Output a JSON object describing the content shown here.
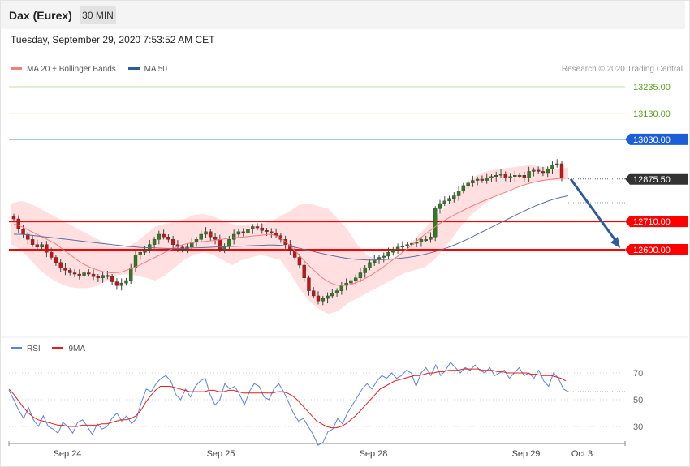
{
  "header": {
    "title": "Dax (Eurex)",
    "timeframe": "30 MIN",
    "timestamp": "Tuesday, September 29, 2020 7:53:52 AM CET"
  },
  "legend": {
    "ma20_label": "MA 20 + Bollinger Bands",
    "ma50_label": "MA 50",
    "credit": "Research © 2020 Trading Central",
    "rsi_label": "RSI",
    "ma9_label": "9MA"
  },
  "colors": {
    "candle_up": "#2e7d1e",
    "candle_down": "#cc1111",
    "bollinger_fill": "#ffd4d4",
    "ma20": "#f08080",
    "ma50": "#5a6fa0",
    "resistance_light": "#9ccc65",
    "resistance_blue": "#1a5ed8",
    "support_red": "#ff0000",
    "arrow": "#2e5aa0",
    "rsi": "#5b83d6",
    "rsi_ma": "#e02020"
  },
  "chart_data": [
    {
      "type": "candlestick",
      "title": "Dax (Eurex)",
      "ylim": [
        12300,
        13280
      ],
      "x_ticks": [
        "Sep 24",
        "Sep 25",
        "Sep 28",
        "Sep 29",
        "Oct 3"
      ],
      "levels": [
        {
          "value": 13235.0,
          "label": "13235.00",
          "style": "light-green"
        },
        {
          "value": 13130.0,
          "label": "13130.00",
          "style": "light-green"
        },
        {
          "value": 13030.0,
          "label": "13030.00",
          "style": "blue"
        },
        {
          "value": 12710.0,
          "label": "12710.00",
          "style": "red"
        },
        {
          "value": 12600.0,
          "label": "12600.00",
          "style": "red"
        }
      ],
      "last_price": {
        "value": 12875.5,
        "label": "12875.50"
      },
      "forecast_arrow": {
        "from": 12875.5,
        "to": 12600.0,
        "direction": "down"
      },
      "closes": [
        12720,
        12680,
        12660,
        12640,
        12620,
        12610,
        12620,
        12590,
        12570,
        12550,
        12530,
        12520,
        12510,
        12505,
        12500,
        12510,
        12505,
        12495,
        12490,
        12500,
        12495,
        12475,
        12460,
        12470,
        12480,
        12530,
        12580,
        12590,
        12600,
        12620,
        12640,
        12660,
        12650,
        12640,
        12620,
        12610,
        12600,
        12610,
        12630,
        12640,
        12660,
        12670,
        12650,
        12640,
        12600,
        12615,
        12640,
        12660,
        12670,
        12665,
        12680,
        12690,
        12685,
        12675,
        12670,
        12665,
        12655,
        12640,
        12620,
        12600,
        12570,
        12540,
        12490,
        12440,
        12420,
        12400,
        12410,
        12420,
        12430,
        12440,
        12460,
        12470,
        12480,
        12490,
        12510,
        12530,
        12550,
        12560,
        12570,
        12575,
        12590,
        12600,
        12610,
        12615,
        12620,
        12625,
        12630,
        12640,
        12640,
        12650,
        12760,
        12780,
        12790,
        12800,
        12810,
        12830,
        12850,
        12860,
        12870,
        12875,
        12870,
        12880,
        12885,
        12890,
        12895,
        12880,
        12885,
        12890,
        12890,
        12880,
        12905,
        12910,
        12905,
        12900,
        12915,
        12930,
        12935,
        12880
      ],
      "ma20": [
        12700,
        12695,
        12685,
        12675,
        12665,
        12655,
        12645,
        12635,
        12625,
        12610,
        12595,
        12580,
        12565,
        12550,
        12540,
        12530,
        12523,
        12517,
        12512,
        12510,
        12511,
        12513,
        12520,
        12528,
        12535,
        12545,
        12555,
        12565,
        12575,
        12585,
        12595,
        12605,
        12613,
        12620,
        12625,
        12628,
        12630,
        12632,
        12634,
        12636,
        12639,
        12642,
        12645,
        12647,
        12648,
        12650,
        12652,
        12654,
        12656,
        12658,
        12660,
        12655,
        12645,
        12630,
        12612,
        12592,
        12570,
        12548,
        12528,
        12510,
        12492,
        12478,
        12468,
        12462,
        12460,
        12462,
        12467,
        12474,
        12483,
        12494,
        12506,
        12519,
        12533,
        12548,
        12563,
        12578,
        12594,
        12610,
        12626,
        12642,
        12658,
        12673,
        12688,
        12702,
        12715,
        12727,
        12738,
        12748,
        12758,
        12768,
        12777,
        12786,
        12794,
        12802,
        12810,
        12818,
        12826,
        12834,
        12842,
        12850,
        12856,
        12862,
        12866,
        12870,
        12873,
        12875,
        12877,
        12878,
        12880
      ],
      "ma50": [
        12660,
        12660,
        12658,
        12655,
        12652,
        12649,
        12646,
        12643,
        12640,
        12637,
        12634,
        12631,
        12628,
        12625,
        12622,
        12619,
        12616,
        12613,
        12611,
        12609,
        12608,
        12607,
        12606,
        12605,
        12605,
        12605,
        12606,
        12607,
        12608,
        12609,
        12610,
        12611,
        12612,
        12613,
        12614,
        12615,
        12616,
        12617,
        12618,
        12618,
        12617,
        12614,
        12610,
        12604,
        12598,
        12592,
        12586,
        12580,
        12575,
        12570,
        12566,
        12563,
        12561,
        12560,
        12560,
        12561,
        12562,
        12564,
        12567,
        12570,
        12574,
        12579,
        12585,
        12592,
        12600,
        12609,
        12619,
        12630,
        12642,
        12655,
        12668,
        12681,
        12694,
        12707,
        12720,
        12733,
        12746,
        12758,
        12770,
        12780,
        12790,
        12798,
        12805,
        12810
      ],
      "bollinger_upper": [
        12780,
        12790,
        12780,
        12760,
        12740,
        12720,
        12700,
        12680,
        12660,
        12640,
        12620,
        12610,
        12610,
        12630,
        12660,
        12690,
        12700,
        12710,
        12720,
        12735,
        12740,
        12730,
        12715,
        12700,
        12695,
        12700,
        12700,
        12710,
        12730,
        12750,
        12775,
        12780,
        12770,
        12760,
        12720,
        12680,
        12620,
        12580,
        12560,
        12560,
        12570,
        12600,
        12640,
        12680,
        12720,
        12760,
        12800,
        12840,
        12880,
        12900,
        12910,
        12915,
        12920,
        12925,
        12930,
        12925,
        12920,
        12915,
        12920
      ],
      "bollinger_lower": [
        12620,
        12600,
        12560,
        12520,
        12490,
        12470,
        12455,
        12450,
        12450,
        12460,
        12480,
        12500,
        12505,
        12500,
        12490,
        12480,
        12500,
        12530,
        12560,
        12580,
        12590,
        12580,
        12560,
        12540,
        12560,
        12570,
        12580,
        12570,
        12560,
        12510,
        12450,
        12400,
        12370,
        12350,
        12360,
        12390,
        12410,
        12430,
        12450,
        12470,
        12490,
        12510,
        12520,
        12530,
        12560,
        12600,
        12650,
        12700,
        12740,
        12770,
        12800,
        12820,
        12835,
        12850,
        12860,
        12865,
        12870,
        12870,
        12875
      ]
    },
    {
      "type": "line",
      "title": "RSI",
      "ylim": [
        15,
        85
      ],
      "y_ticks": [
        70,
        50,
        30
      ],
      "series": [
        {
          "name": "RSI",
          "values": [
            57,
            50,
            42,
            36,
            44,
            35,
            30,
            38,
            30,
            28,
            25,
            33,
            30,
            25,
            33,
            35,
            30,
            24,
            32,
            28,
            30,
            36,
            40,
            34,
            38,
            32,
            36,
            48,
            58,
            56,
            62,
            66,
            68,
            64,
            54,
            50,
            58,
            52,
            60,
            64,
            66,
            54,
            46,
            50,
            62,
            58,
            60,
            54,
            46,
            56,
            62,
            60,
            52,
            50,
            58,
            62,
            56,
            48,
            40,
            34,
            36,
            30,
            24,
            16,
            18,
            26,
            28,
            36,
            32,
            40,
            46,
            52,
            58,
            62,
            58,
            64,
            68,
            66,
            70,
            66,
            68,
            72,
            70,
            60,
            70,
            74,
            68,
            76,
            68,
            72,
            78,
            74,
            70,
            74,
            72,
            76,
            72,
            70,
            74,
            68,
            70,
            72,
            66,
            70,
            74,
            68,
            70,
            66,
            72,
            64,
            60,
            70,
            66,
            58,
            56
          ]
        },
        {
          "name": "9MA",
          "values": [
            58,
            54,
            49,
            44,
            40,
            37,
            35,
            34,
            33,
            32,
            31,
            31,
            30,
            30,
            30,
            31,
            31,
            31,
            31,
            32,
            32,
            33,
            34,
            35,
            35,
            36,
            38,
            42,
            48,
            53,
            57,
            60,
            60,
            60,
            59,
            58,
            57,
            56,
            56,
            56,
            56,
            57,
            57,
            56,
            56,
            57,
            57,
            56,
            55,
            55,
            55,
            55,
            55,
            55,
            55,
            56,
            56,
            55,
            53,
            50,
            46,
            42,
            38,
            34,
            32,
            30,
            29,
            29,
            30,
            32,
            35,
            38,
            42,
            46,
            50,
            54,
            58,
            60,
            62,
            64,
            65,
            66,
            67,
            68,
            68,
            69,
            70,
            70,
            71,
            71,
            72,
            72,
            72,
            73,
            73,
            73,
            73,
            72,
            72,
            72,
            71,
            71,
            70,
            70,
            70,
            70,
            70,
            69,
            69,
            68,
            68,
            68,
            67,
            66,
            64
          ]
        }
      ]
    }
  ]
}
